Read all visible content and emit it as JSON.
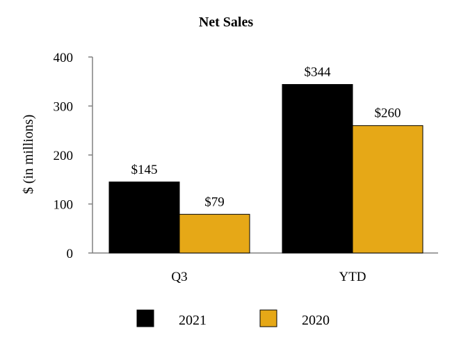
{
  "chart_data": {
    "type": "bar",
    "title": "Net Sales",
    "xlabel": "",
    "ylabel": "$ (in millions)",
    "ylim": [
      0,
      400
    ],
    "yticks": [
      0,
      100,
      200,
      300,
      400
    ],
    "categories": [
      "Q3",
      "YTD"
    ],
    "series": [
      {
        "name": "2021",
        "color": "#000000",
        "values": [
          145,
          344
        ],
        "data_labels": [
          "$145",
          "$344"
        ]
      },
      {
        "name": "2020",
        "color": "#E6A817",
        "values": [
          79,
          260
        ],
        "data_labels": [
          "$79",
          "$260"
        ]
      }
    ],
    "grid": false,
    "legend_position": "bottom"
  }
}
